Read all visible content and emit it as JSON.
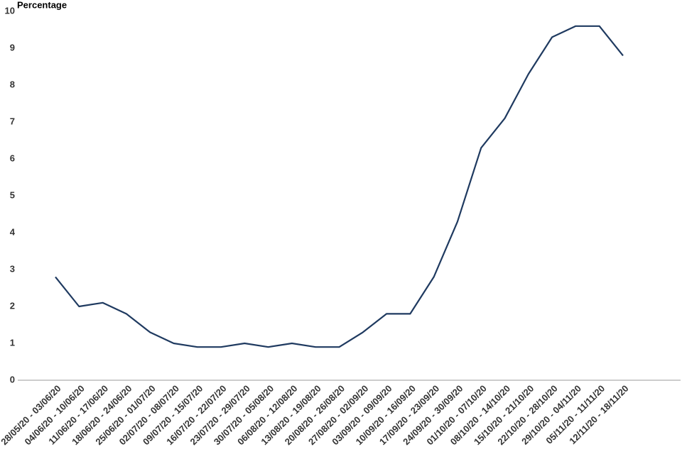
{
  "chart_data": {
    "type": "line",
    "y_label": "Percentage",
    "categories": [
      "28/05/20 - 03/06/20",
      "04/06/20 - 10/06/20",
      "11/06/20 - 17/06/20",
      "18/06/20 - 24/06/20",
      "25/06/20 - 01/07/20",
      "02/07/20 - 08/07/20",
      "09/07/20 - 15/07/20",
      "16/07/20 - 22/07/20",
      "23/07/20 - 29/07/20",
      "30/07/20 - 05/08/20",
      "06/08/20 - 12/08/20",
      "13/08/20 - 19/08/20",
      "20/08/20 - 26/08/20",
      "27/08/20 - 02/09/20",
      "03/09/20 - 09/09/20",
      "10/09/20 - 16/09/20",
      "17/09/20 - 23/09/20",
      "24/09/20 - 30/09/20",
      "01/10/20 - 07/10/20",
      "08/10/20 - 14/10/20",
      "15/10/20 - 21/10/20",
      "22/10/20 - 28/10/20",
      "29/10/20 - 04/11/20",
      "05/11/20 - 11/11/20",
      "12/11/20 - 18/11/20"
    ],
    "values": [
      2.8,
      2.0,
      2.1,
      1.8,
      1.3,
      1.0,
      0.9,
      0.9,
      1.0,
      0.9,
      1.0,
      0.9,
      0.9,
      1.3,
      1.8,
      1.8,
      2.8,
      4.3,
      6.3,
      7.1,
      8.3,
      9.3,
      9.6,
      9.6,
      8.8
    ],
    "color": "#1f3a60",
    "ylim": [
      0,
      10
    ],
    "yticks": [
      0,
      1,
      2,
      3,
      4,
      5,
      6,
      7,
      8,
      9,
      10
    ],
    "grid": false
  }
}
